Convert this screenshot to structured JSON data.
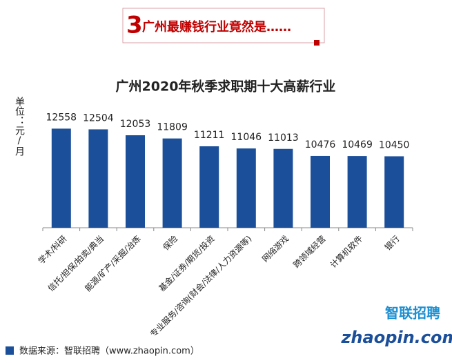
{
  "header": {
    "number": "3",
    "title": "广州最赚钱行业竟然是……"
  },
  "chart_data": {
    "type": "bar",
    "title": "广州2020年秋季求职期十大高薪行业",
    "y_label": "单位：元/月",
    "categories": [
      "学术/科研",
      "信托/担保/拍卖/典当",
      "能源/矿产/采掘/冶炼",
      "保险",
      "基金/证券/期货/投资",
      "专业服务/咨询(财会/法律/人力资源等)",
      "网络游戏",
      "跨领域经营",
      "计算机软件",
      "银行"
    ],
    "values": [
      12558,
      12504,
      12053,
      11809,
      11211,
      11046,
      11013,
      10476,
      10469,
      10450
    ],
    "color": "#1c4f9a",
    "ylim": [
      5000,
      13000
    ]
  },
  "footer": {
    "source": "数据来源：智联招聘（www.zhaopin.com）"
  },
  "logo": {
    "top": "智联招聘",
    "bottom": "zhaopin.com"
  }
}
